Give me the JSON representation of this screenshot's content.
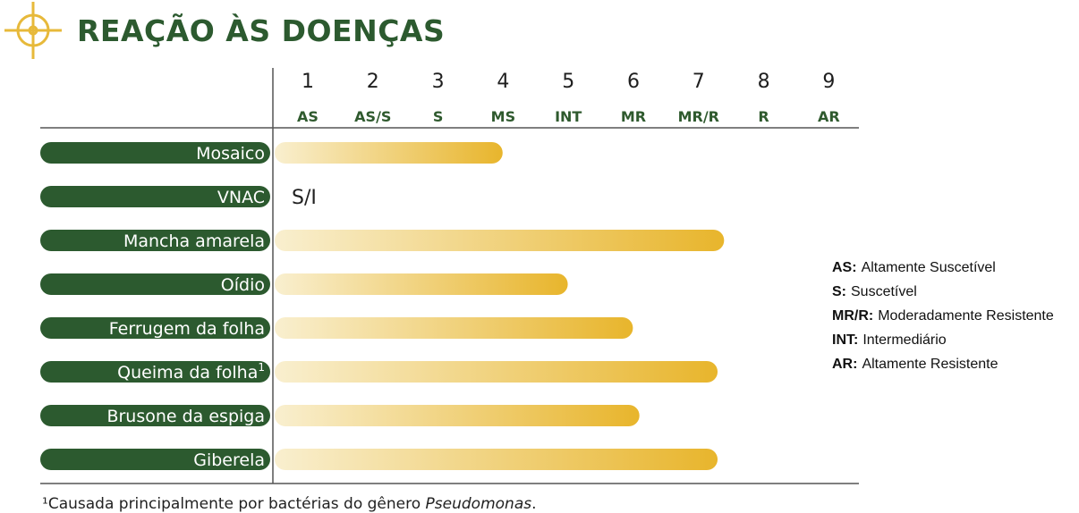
{
  "title": "REAÇÃO ÀS DOENÇAS",
  "colors": {
    "brand_green": "#2c5a2f",
    "bar_start": "#f9efcf",
    "bar_end": "#e8b52c",
    "title_icon_gold": "#e7b93a"
  },
  "icons": {
    "title": "crosshair-target-icon"
  },
  "scale": [
    {
      "number": "1",
      "code": "AS"
    },
    {
      "number": "2",
      "code": "AS/S"
    },
    {
      "number": "3",
      "code": "S"
    },
    {
      "number": "4",
      "code": "MS"
    },
    {
      "number": "5",
      "code": "INT"
    },
    {
      "number": "6",
      "code": "MR"
    },
    {
      "number": "7",
      "code": "MR/R"
    },
    {
      "number": "8",
      "code": "R"
    },
    {
      "number": "9",
      "code": "AR"
    }
  ],
  "chart_data": {
    "type": "bar",
    "orientation": "horizontal",
    "xlim": [
      0,
      9
    ],
    "gridlines": false,
    "rows": [
      {
        "label": "Mosaico",
        "value": 3.5,
        "text": null
      },
      {
        "label": "VNAC",
        "value": null,
        "text": "S/I"
      },
      {
        "label": "Mancha amarela",
        "value": 6.9,
        "text": null
      },
      {
        "label": "Oídio",
        "value": 4.5,
        "text": null
      },
      {
        "label": "Ferrugem da folha",
        "value": 5.5,
        "text": null
      },
      {
        "label": "Queima da folha",
        "value": 6.8,
        "text": null,
        "sup": "1"
      },
      {
        "label": "Brusone da espiga",
        "value": 5.6,
        "text": null
      },
      {
        "label": "Giberela",
        "value": 6.8,
        "text": null
      }
    ]
  },
  "legend": [
    {
      "key": "AS:",
      "desc": "Altamente Suscetível"
    },
    {
      "key": "S:",
      "desc": "Suscetível"
    },
    {
      "key": "MR/R:",
      "desc": "Moderadamente Resistente"
    },
    {
      "key": "INT:",
      "desc": "Intermediário"
    },
    {
      "key": "AR:",
      "desc": "Altamente Resistente"
    }
  ],
  "footnote": {
    "marker": "¹",
    "text": "Causada principalmente por bactérias do gênero ",
    "italic": "Pseudomonas",
    "end": "."
  }
}
